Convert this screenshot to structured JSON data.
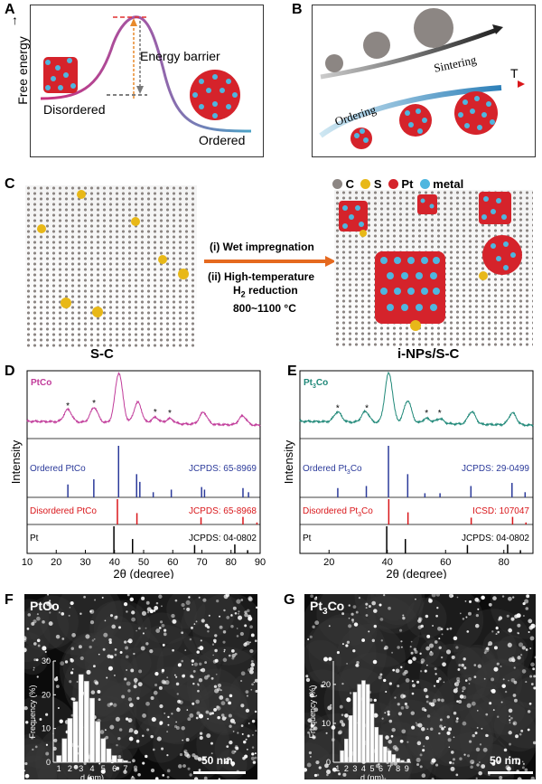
{
  "panels": {
    "A": {
      "letter": "A",
      "ylabel": "Free energy",
      "barrier": "Energy barrier",
      "left": "Disordered",
      "right": "Ordered"
    },
    "B": {
      "letter": "B",
      "sintering": "Sintering",
      "ordering": "Ordering",
      "T": "T"
    },
    "C": {
      "letter": "C",
      "legend": [
        "C",
        "S",
        "Pt",
        "metal"
      ],
      "step1": "(i) Wet impregnation",
      "step2a": "(ii) High-temperature",
      "step2b": "H",
      "step2b_sub": "2",
      "step2b_rest": " reduction",
      "temp": "800~1100 °C",
      "left_label": "S-C",
      "right_label": "i-NPs/S-C"
    },
    "D": {
      "letter": "D"
    },
    "E": {
      "letter": "E"
    },
    "F": {
      "letter": "F",
      "title": "PtCo",
      "scale": "50 nm"
    },
    "G": {
      "letter": "G",
      "title_main": "Pt",
      "title_sub": "3",
      "title_end": "Co",
      "scale": "50 nm"
    }
  },
  "chart_data": [
    {
      "type": "line",
      "id": "D",
      "sample": "PtCo",
      "xlabel": "2θ (degree)",
      "ylabel": "Intensity",
      "xlim": [
        10,
        90
      ],
      "xticks": [
        10,
        20,
        30,
        40,
        50,
        60,
        70,
        80,
        90
      ],
      "trace_color": "#c13b9a",
      "peaks": [
        {
          "x": 24,
          "h": 0.25
        },
        {
          "x": 33,
          "h": 0.3
        },
        {
          "x": 41.5,
          "h": 1.0
        },
        {
          "x": 48,
          "h": 0.42
        },
        {
          "x": 54,
          "h": 0.12
        },
        {
          "x": 59,
          "h": 0.1
        },
        {
          "x": 70.5,
          "h": 0.24
        },
        {
          "x": 84,
          "h": 0.18
        }
      ],
      "asterisks": [
        24,
        33,
        54,
        59
      ],
      "references": [
        {
          "label": "Ordered PtCo",
          "card": "JCPDS: 65-8969",
          "color": "#2b3a9a",
          "lines": [
            {
              "x": 24.0,
              "h": 0.25
            },
            {
              "x": 32.9,
              "h": 0.35
            },
            {
              "x": 41.4,
              "h": 1.0
            },
            {
              "x": 47.6,
              "h": 0.45
            },
            {
              "x": 48.7,
              "h": 0.3
            },
            {
              "x": 53.3,
              "h": 0.1
            },
            {
              "x": 59.5,
              "h": 0.15
            },
            {
              "x": 69.9,
              "h": 0.2
            },
            {
              "x": 70.9,
              "h": 0.15
            },
            {
              "x": 84.1,
              "h": 0.18
            },
            {
              "x": 86.0,
              "h": 0.1
            }
          ]
        },
        {
          "label": "Disordered PtCo",
          "card": "JCPDS: 65-8968",
          "color": "#d9161a",
          "lines": [
            {
              "x": 41.0,
              "h": 1.0
            },
            {
              "x": 47.7,
              "h": 0.45
            },
            {
              "x": 69.7,
              "h": 0.28
            },
            {
              "x": 84.1,
              "h": 0.3
            },
            {
              "x": 88.9,
              "h": 0.08
            }
          ]
        },
        {
          "label": "Pt",
          "card": "JCPDS: 04-0802",
          "color": "#000000",
          "lines": [
            {
              "x": 39.8,
              "h": 1.0
            },
            {
              "x": 46.2,
              "h": 0.53
            },
            {
              "x": 67.5,
              "h": 0.31
            },
            {
              "x": 81.3,
              "h": 0.33
            },
            {
              "x": 85.7,
              "h": 0.12
            }
          ]
        }
      ]
    },
    {
      "type": "line",
      "id": "E",
      "sample": "Pt3Co",
      "sample_main": "Pt",
      "sample_sub": "3",
      "sample_end": "Co",
      "xlabel": "2θ (degree)",
      "ylabel": "Intensity",
      "xlim": [
        10,
        90
      ],
      "xticks": [
        20,
        40,
        60,
        80
      ],
      "trace_color": "#1f8878",
      "peaks": [
        {
          "x": 23,
          "h": 0.2
        },
        {
          "x": 32.5,
          "h": 0.22
        },
        {
          "x": 40.5,
          "h": 1.0
        },
        {
          "x": 47,
          "h": 0.45
        },
        {
          "x": 53.5,
          "h": 0.1
        },
        {
          "x": 58,
          "h": 0.1
        },
        {
          "x": 69,
          "h": 0.25
        },
        {
          "x": 83,
          "h": 0.24
        }
      ],
      "asterisks": [
        23,
        33,
        53.5,
        58
      ],
      "references": [
        {
          "label": "Ordered Pt3Co",
          "label_main": "Ordered Pt",
          "label_sub": "3",
          "label_end": "Co",
          "card": "JCPDS: 29-0499",
          "color": "#2b3a9a",
          "lines": [
            {
              "x": 23.0,
              "h": 0.18
            },
            {
              "x": 32.8,
              "h": 0.22
            },
            {
              "x": 40.4,
              "h": 1.0
            },
            {
              "x": 47.0,
              "h": 0.45
            },
            {
              "x": 52.9,
              "h": 0.08
            },
            {
              "x": 58.1,
              "h": 0.08
            },
            {
              "x": 68.7,
              "h": 0.22
            },
            {
              "x": 82.8,
              "h": 0.28
            },
            {
              "x": 87.3,
              "h": 0.1
            }
          ]
        },
        {
          "label": "Disordered Pt3Co",
          "label_main": "Disordered Pt",
          "label_sub": "3",
          "label_end": "Co",
          "card": "ICSD: 107047",
          "color": "#d9161a",
          "lines": [
            {
              "x": 40.5,
              "h": 1.0
            },
            {
              "x": 47.1,
              "h": 0.48
            },
            {
              "x": 68.8,
              "h": 0.27
            },
            {
              "x": 83.0,
              "h": 0.3
            },
            {
              "x": 87.6,
              "h": 0.08
            }
          ]
        },
        {
          "label": "Pt",
          "card": "JCPDS: 04-0802",
          "color": "#000000",
          "lines": [
            {
              "x": 39.8,
              "h": 1.0
            },
            {
              "x": 46.2,
              "h": 0.53
            },
            {
              "x": 67.5,
              "h": 0.31
            },
            {
              "x": 81.3,
              "h": 0.33
            },
            {
              "x": 85.7,
              "h": 0.12
            }
          ]
        }
      ]
    },
    {
      "type": "bar",
      "id": "F-hist",
      "xlabel": "d (nm)",
      "ylabel": "Frequency (%)",
      "categories": [
        1,
        1.5,
        2,
        2.5,
        3,
        3.5,
        4,
        4.5,
        5,
        5.5,
        6,
        6.5,
        7
      ],
      "values": [
        2,
        7,
        13,
        18,
        26,
        24,
        19,
        12,
        7,
        4,
        2,
        1,
        0.5
      ],
      "xticks": [
        1,
        2,
        3,
        4,
        5,
        6,
        7
      ],
      "yticks": [
        0,
        10,
        20,
        30
      ],
      "ylim": [
        0,
        30
      ]
    },
    {
      "type": "bar",
      "id": "G-hist",
      "xlabel": "d (nm)",
      "ylabel": "Frequency (%)",
      "categories": [
        1.5,
        2,
        2.5,
        3,
        3.5,
        4,
        4.5,
        5,
        5.5,
        6,
        6.5,
        7,
        7.5,
        8,
        8.5
      ],
      "values": [
        3,
        6,
        12,
        18,
        20,
        21,
        20,
        15,
        9,
        7,
        4,
        3,
        2,
        1,
        0.5
      ],
      "xticks": [
        1,
        2,
        3,
        4,
        5,
        6,
        7,
        8,
        9
      ],
      "yticks": [
        0,
        10,
        20
      ],
      "ylim": [
        0,
        26
      ]
    }
  ]
}
